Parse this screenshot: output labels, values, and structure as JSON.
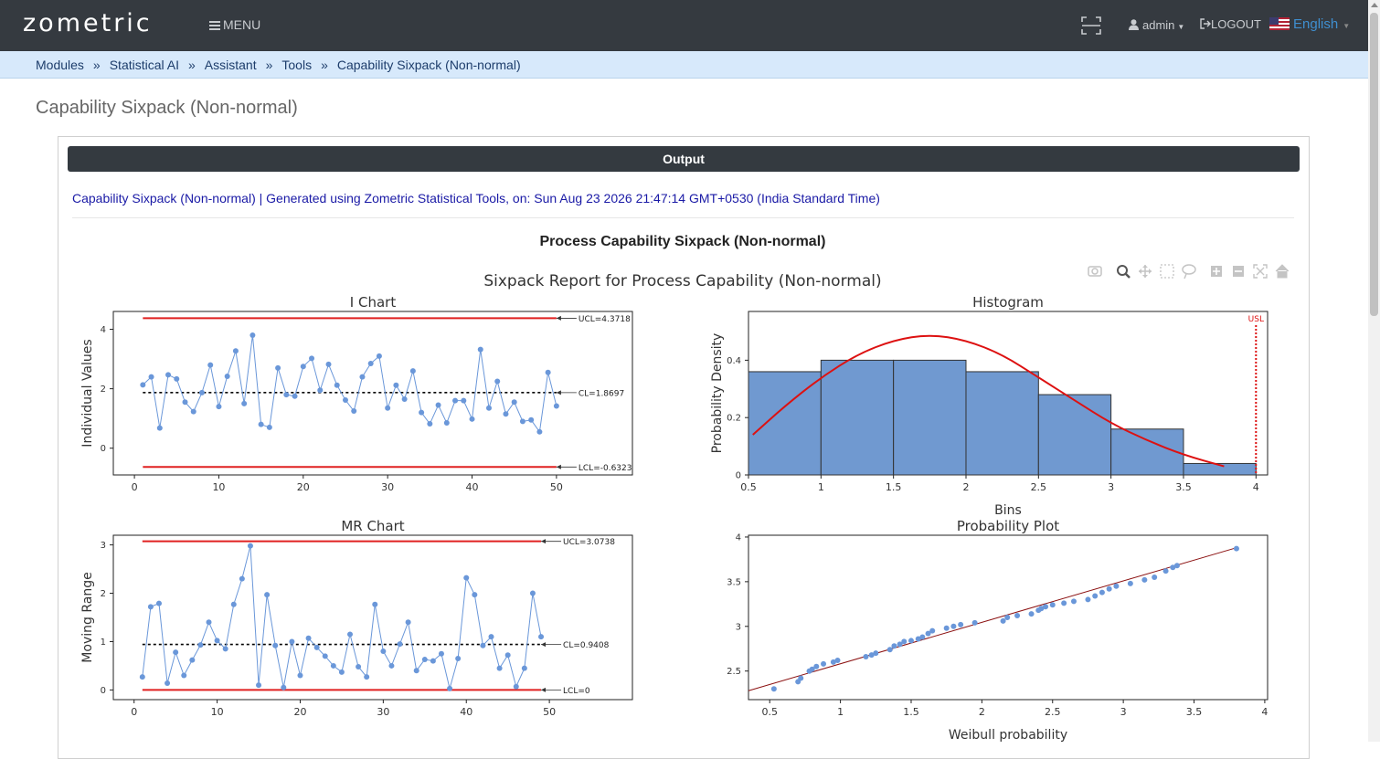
{
  "app": {
    "logo": "zometric",
    "menu_label": "MENU",
    "user_label": "admin",
    "logout_label": "LOGOUT",
    "language_label": "English"
  },
  "breadcrumb": [
    "Modules",
    "Statistical AI",
    "Assistant",
    "Tools",
    "Capability Sixpack (Non-normal)"
  ],
  "page_title": "Capability Sixpack (Non-normal)",
  "output": {
    "header": "Output",
    "generated_line": "Capability Sixpack (Non-normal) | Generated using Zometric Statistical Tools, on: Sun Aug 23 2026 21:47:14 GMT+0530 (India Standard Time)",
    "report_title": "Process Capability Sixpack (Non-normal)"
  },
  "plot_toolbar": [
    "camera-icon",
    "zoom-icon",
    "pan-icon",
    "box-select-icon",
    "lasso-select-icon",
    "zoom-in-icon",
    "zoom-out-icon",
    "autoscale-icon",
    "reset-axes-icon"
  ],
  "chart_data": [
    {
      "id": "i_chart",
      "type": "line",
      "figure_title": "Sixpack Report for Process Capability (Non-normal)",
      "title": "I Chart",
      "ylabel": "Individual Values",
      "xlabel": "",
      "xlim": [
        -2.5,
        59
      ],
      "ylim": [
        -0.9,
        4.6
      ],
      "xticks": [
        0,
        10,
        20,
        30,
        40,
        50
      ],
      "yticks": [
        0,
        2,
        4
      ],
      "x": [
        1,
        2,
        3,
        4,
        5,
        6,
        7,
        8,
        9,
        10,
        11,
        12,
        13,
        14,
        15,
        16,
        17,
        18,
        19,
        20,
        21,
        22,
        23,
        24,
        25,
        26,
        27,
        28,
        29,
        30,
        31,
        32,
        33,
        34,
        35,
        36,
        37,
        38,
        39,
        40,
        41,
        42,
        43,
        44,
        45,
        46,
        47,
        48,
        49,
        50
      ],
      "values": [
        2.13,
        2.4,
        0.68,
        2.47,
        2.33,
        1.55,
        1.23,
        1.87,
        2.8,
        1.4,
        2.42,
        3.27,
        1.5,
        3.8,
        0.8,
        0.7,
        2.7,
        1.8,
        1.75,
        2.75,
        3.02,
        1.95,
        2.82,
        2.12,
        1.62,
        1.25,
        2.4,
        2.85,
        3.1,
        1.35,
        2.12,
        1.65,
        2.6,
        1.2,
        0.82,
        1.45,
        0.85,
        1.6,
        1.6,
        0.98,
        3.32,
        1.35,
        2.25,
        1.15,
        1.55,
        0.9,
        0.95,
        0.55,
        2.55,
        1.42
      ],
      "control_lines": [
        {
          "label": "UCL=4.3718",
          "value": 4.3718,
          "color": "#e02020"
        },
        {
          "label": "CL=1.8697",
          "value": 1.8697,
          "color": "#000000"
        },
        {
          "label": "LCL=-0.6323",
          "value": -0.6323,
          "color": "#e02020"
        }
      ],
      "line_color": "#6a97d9"
    },
    {
      "id": "histogram",
      "type": "bar",
      "title": "Histogram",
      "xlabel": "Bins",
      "ylabel": "Probability Density",
      "xlim": [
        0.5,
        4.08
      ],
      "ylim": [
        0,
        0.57
      ],
      "xticks": [
        0.5,
        1,
        1.5,
        2,
        2.5,
        3,
        3.5,
        4
      ],
      "xtick_labels": [
        "0.5",
        "1",
        "1.5",
        "2",
        "2.5",
        "3",
        "3.5",
        "4"
      ],
      "yticks": [
        0,
        0.2,
        0.4
      ],
      "bins": [
        [
          0.5,
          1
        ],
        [
          1,
          1.5
        ],
        [
          1.5,
          2
        ],
        [
          2,
          2.5
        ],
        [
          2.5,
          3
        ],
        [
          3,
          3.5
        ],
        [
          3.5,
          4
        ]
      ],
      "values": [
        0.36,
        0.4,
        0.4,
        0.36,
        0.28,
        0.16,
        0.04
      ],
      "fit_curve": {
        "x": [
          0.53,
          0.75,
          1.0,
          1.25,
          1.5,
          1.75,
          2.0,
          2.25,
          2.5,
          2.75,
          3.0,
          3.25,
          3.5,
          3.78
        ],
        "y": [
          0.14,
          0.24,
          0.34,
          0.42,
          0.47,
          0.49,
          0.47,
          0.42,
          0.34,
          0.26,
          0.18,
          0.12,
          0.07,
          0.03
        ],
        "color": "#dd1111"
      },
      "usl": {
        "label": "USL",
        "value": 4.0,
        "color": "#dd1111"
      },
      "bar_color": "#7099d0"
    },
    {
      "id": "mr_chart",
      "type": "line",
      "title": "MR Chart",
      "ylabel": "Moving Range",
      "xlabel": "",
      "xlim": [
        -2.5,
        60
      ],
      "ylim": [
        -0.2,
        3.2
      ],
      "xticks": [
        0,
        10,
        20,
        30,
        40,
        50
      ],
      "yticks": [
        0,
        1,
        2,
        3
      ],
      "x": [
        1,
        2,
        3,
        4,
        5,
        6,
        7,
        8,
        9,
        10,
        11,
        12,
        13,
        14,
        15,
        16,
        17,
        18,
        19,
        20,
        21,
        22,
        23,
        24,
        25,
        26,
        27,
        28,
        29,
        30,
        31,
        32,
        33,
        34,
        35,
        36,
        37,
        38,
        39,
        40,
        41,
        42,
        43,
        44,
        45,
        46,
        47,
        48,
        49
      ],
      "values": [
        0.27,
        1.72,
        1.79,
        0.14,
        0.78,
        0.3,
        0.62,
        0.93,
        1.4,
        1.02,
        0.85,
        1.77,
        2.3,
        2.98,
        0.1,
        1.97,
        0.92,
        0.05,
        1.0,
        0.3,
        1.07,
        0.88,
        0.7,
        0.5,
        0.37,
        1.15,
        0.48,
        0.27,
        1.77,
        0.8,
        0.5,
        0.95,
        1.4,
        0.4,
        0.63,
        0.6,
        0.75,
        0.03,
        0.65,
        2.32,
        1.97,
        0.92,
        1.1,
        0.45,
        0.72,
        0.07,
        0.45,
        2.0,
        1.1
      ],
      "control_lines": [
        {
          "label": "UCL=3.0738",
          "value": 3.0738,
          "color": "#e02020"
        },
        {
          "label": "CL=0.9408",
          "value": 0.9408,
          "color": "#000000"
        },
        {
          "label": "LCL=0",
          "value": 0,
          "color": "#e02020"
        }
      ],
      "line_color": "#6a97d9"
    },
    {
      "id": "probability_plot",
      "type": "scatter",
      "title": "Probability Plot",
      "xlabel": "Weibull probability",
      "ylabel": "",
      "xlim": [
        0.35,
        4.02
      ],
      "ylim": [
        2.18,
        4.02
      ],
      "xticks": [
        0.5,
        1,
        1.5,
        2,
        2.5,
        3,
        3.5,
        4
      ],
      "yticks": [
        2.5,
        3,
        3.5,
        4
      ],
      "points": [
        [
          0.53,
          2.3
        ],
        [
          0.7,
          2.38
        ],
        [
          0.72,
          2.42
        ],
        [
          0.78,
          2.5
        ],
        [
          0.8,
          2.52
        ],
        [
          0.83,
          2.55
        ],
        [
          0.88,
          2.58
        ],
        [
          0.95,
          2.6
        ],
        [
          0.98,
          2.62
        ],
        [
          1.18,
          2.66
        ],
        [
          1.22,
          2.68
        ],
        [
          1.25,
          2.7
        ],
        [
          1.35,
          2.74
        ],
        [
          1.38,
          2.78
        ],
        [
          1.42,
          2.8
        ],
        [
          1.45,
          2.83
        ],
        [
          1.5,
          2.84
        ],
        [
          1.55,
          2.86
        ],
        [
          1.58,
          2.88
        ],
        [
          1.62,
          2.92
        ],
        [
          1.65,
          2.95
        ],
        [
          1.75,
          2.98
        ],
        [
          1.8,
          3.0
        ],
        [
          1.85,
          3.02
        ],
        [
          1.95,
          3.04
        ],
        [
          2.15,
          3.06
        ],
        [
          2.18,
          3.1
        ],
        [
          2.25,
          3.12
        ],
        [
          2.35,
          3.14
        ],
        [
          2.4,
          3.18
        ],
        [
          2.42,
          3.2
        ],
        [
          2.45,
          3.22
        ],
        [
          2.5,
          3.24
        ],
        [
          2.58,
          3.26
        ],
        [
          2.65,
          3.28
        ],
        [
          2.75,
          3.3
        ],
        [
          2.8,
          3.34
        ],
        [
          2.85,
          3.38
        ],
        [
          2.9,
          3.42
        ],
        [
          2.95,
          3.45
        ],
        [
          3.05,
          3.48
        ],
        [
          3.15,
          3.52
        ],
        [
          3.22,
          3.55
        ],
        [
          3.3,
          3.62
        ],
        [
          3.35,
          3.66
        ],
        [
          3.38,
          3.68
        ],
        [
          3.8,
          3.87
        ]
      ],
      "fit_line": {
        "x1": 0.35,
        "y1": 2.28,
        "x2": 3.8,
        "y2": 3.88,
        "color": "#8b1010"
      },
      "point_color": "#6a97d9"
    }
  ]
}
